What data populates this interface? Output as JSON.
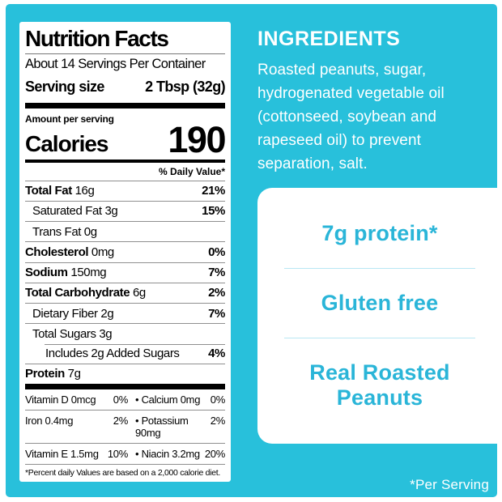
{
  "colors": {
    "cyan_background": "#28c0db",
    "card_text_cyan": "#2ab5d8",
    "card_divider": "#b8e7f3",
    "label_text": "#000000"
  },
  "nutrition_label": {
    "title": "Nutrition Facts",
    "servings_per_container": "About 14 Servings Per Container",
    "serving_size_label": "Serving size",
    "serving_size_value": "2 Tbsp (32g)",
    "amount_per_serving": "Amount per serving",
    "calories_label": "Calories",
    "calories_value": "190",
    "daily_value_header": "% Daily Value*",
    "nutrients": [
      {
        "name": "Total Fat",
        "qty": "16g",
        "dv": "21%",
        "indent": 0,
        "boldName": true
      },
      {
        "name": "Saturated Fat",
        "qty": "3g",
        "dv": "15%",
        "indent": 1,
        "boldName": false
      },
      {
        "name": "Trans Fat",
        "qty": "0g",
        "dv": "",
        "indent": 1,
        "boldName": false
      },
      {
        "name": "Cholesterol",
        "qty": "0mg",
        "dv": "0%",
        "indent": 0,
        "boldName": true
      },
      {
        "name": "Sodium",
        "qty": "150mg",
        "dv": "7%",
        "indent": 0,
        "boldName": true
      },
      {
        "name": "Total Carbohydrate",
        "qty": "6g",
        "dv": "2%",
        "indent": 0,
        "boldName": true
      },
      {
        "name": "Dietary Fiber",
        "qty": "2g",
        "dv": "7%",
        "indent": 1,
        "boldName": false
      },
      {
        "name": "Total Sugars",
        "qty": "3g",
        "dv": "",
        "indent": 1,
        "boldName": false
      },
      {
        "name": "Includes 2g Added Sugars",
        "qty": "",
        "dv": "4%",
        "indent": 2,
        "boldName": false,
        "indentRule": true
      },
      {
        "name": "Protein",
        "qty": "7g",
        "dv": "",
        "indent": 0,
        "boldName": true
      }
    ],
    "vitamins": [
      {
        "name1": "Vitamin D 0mcg",
        "pct1": "0%",
        "name2": "• Calcium 0mg",
        "pct2": "0%"
      },
      {
        "name1": "Iron 0.4mg",
        "pct1": "2%",
        "name2": "• Potassium 90mg",
        "pct2": "2%"
      },
      {
        "name1": "Vitamin E 1.5mg",
        "pct1": "10%",
        "name2": "• Niacin 3.2mg",
        "pct2": "20%"
      }
    ],
    "footnote": "*Percent daily Values are based on a 2,000 calorie diet."
  },
  "ingredients": {
    "title": "INGREDIENTS",
    "text": "Roasted peanuts, sugar, hydrogenated vegetable oil (cottonseed, soybean and rapeseed oil) to prevent separation, salt."
  },
  "claims": {
    "items": [
      "7g protein*",
      "Gluten free",
      "Real Roasted\nPeanuts"
    ]
  },
  "per_serving_note": "*Per Serving"
}
